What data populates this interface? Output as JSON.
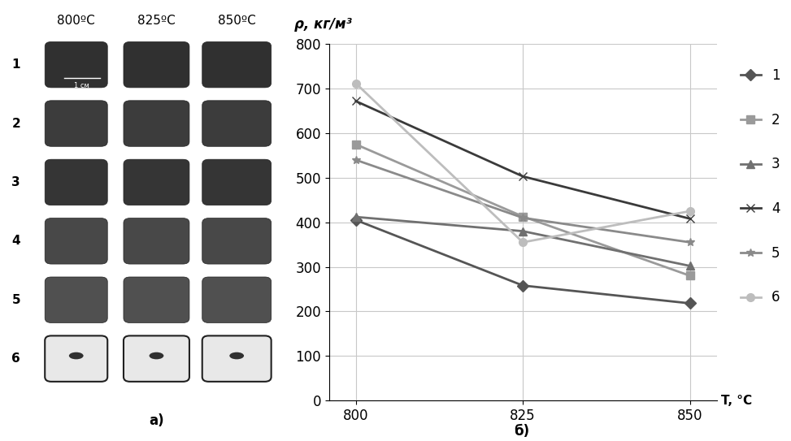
{
  "panel_a": {
    "columns": [
      "800ºC",
      "825ºC",
      "850ºC"
    ],
    "rows": [
      "1",
      "2",
      "3",
      "4",
      "5",
      "6"
    ],
    "scale_bar": "1 см",
    "label": "а)"
  },
  "chart_data": {
    "type": "line",
    "annotations": [
      "б)"
    ],
    "x_label": "T, °C",
    "y_label": "ρ, кг/м³",
    "x": [
      800,
      825,
      850
    ],
    "xlim": [
      796,
      854
    ],
    "xticks": [
      800,
      825,
      850
    ],
    "ylim": [
      0,
      800
    ],
    "yticks": [
      0,
      100,
      200,
      300,
      400,
      500,
      600,
      700,
      800
    ],
    "grid": true,
    "legend": "right",
    "series": [
      {
        "name": "1",
        "color": "#555555",
        "marker": "diamond",
        "values": [
          405,
          258,
          218
        ]
      },
      {
        "name": "2",
        "color": "#9a9a9a",
        "marker": "square",
        "values": [
          575,
          413,
          280
        ]
      },
      {
        "name": "3",
        "color": "#707070",
        "marker": "triangle",
        "values": [
          412,
          380,
          302
        ]
      },
      {
        "name": "4",
        "color": "#3a3a3a",
        "marker": "x",
        "values": [
          672,
          503,
          408
        ]
      },
      {
        "name": "5",
        "color": "#8a8a8a",
        "marker": "star",
        "values": [
          540,
          410,
          355
        ]
      },
      {
        "name": "6",
        "color": "#bdbdbd",
        "marker": "circle",
        "values": [
          712,
          355,
          425
        ]
      }
    ]
  }
}
